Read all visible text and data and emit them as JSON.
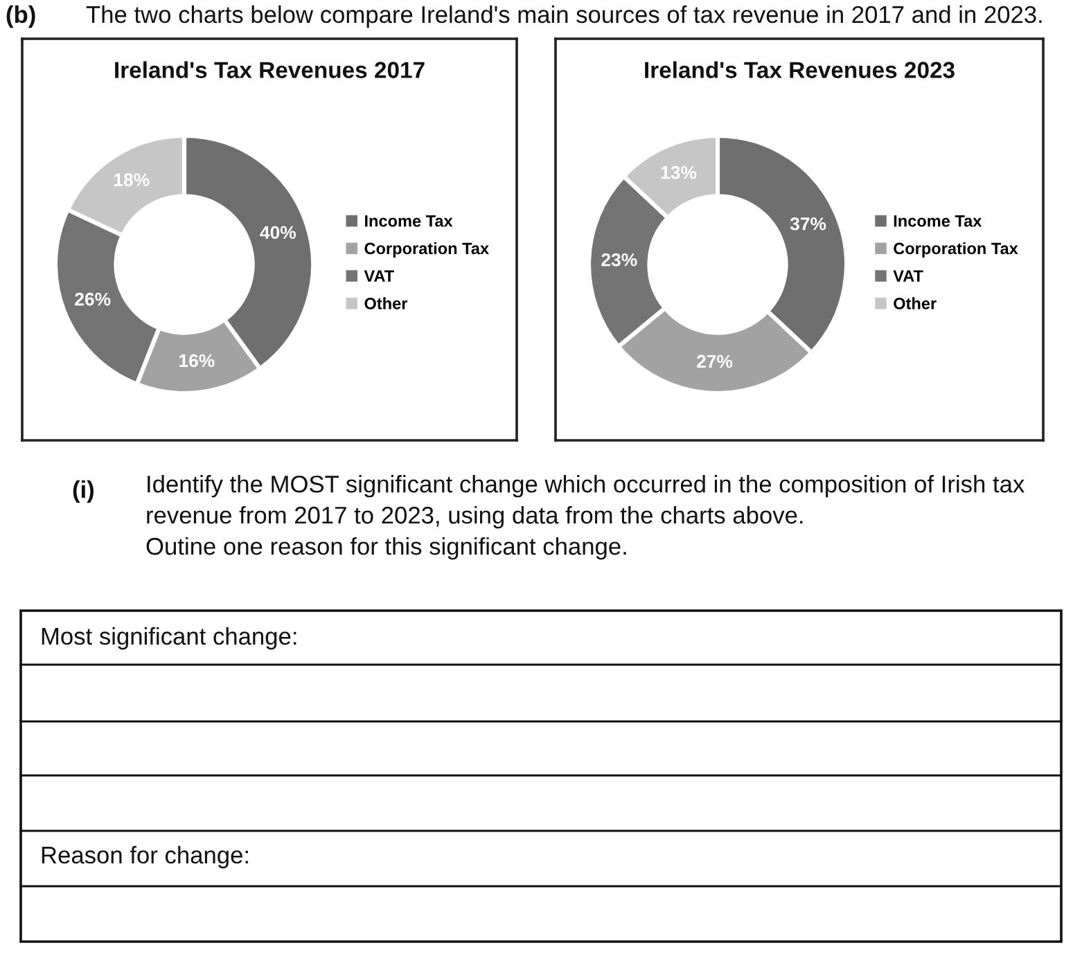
{
  "chart_data": [
    {
      "type": "donut",
      "title": "Ireland's Tax Revenues 2017",
      "categories": [
        "Income Tax",
        "Corporation Tax",
        "VAT",
        "Other"
      ],
      "values": [
        40,
        16,
        26,
        18
      ],
      "value_labels": [
        "40%",
        "16%",
        "26%",
        "18%"
      ],
      "colors": [
        "#6f6f6f",
        "#a2a2a2",
        "#747474",
        "#c6c6c6"
      ],
      "legend": "right",
      "annotations": [
        "(b)",
        "The two charts below compare Ireland's main sources of tax revenue in 2017 and in 2023."
      ]
    },
    {
      "type": "donut",
      "title": "Ireland's Tax Revenues 2023",
      "categories": [
        "Income Tax",
        "Corporation Tax",
        "VAT",
        "Other"
      ],
      "values": [
        37,
        27,
        23,
        13
      ],
      "value_labels": [
        "37%",
        "27%",
        "23%",
        "13%"
      ],
      "colors": [
        "#6f6f6f",
        "#a2a2a2",
        "#747474",
        "#c6c6c6"
      ],
      "legend": "right",
      "annotations": [
        "(i)",
        "Identify the MOST significant change which occurred in the composition of Irish tax\nrevenue from 2017 to 2023, using data from the charts above.\nOutine one reason for this significant change.",
        "Most significant change:",
        "Reason for change:"
      ]
    }
  ]
}
